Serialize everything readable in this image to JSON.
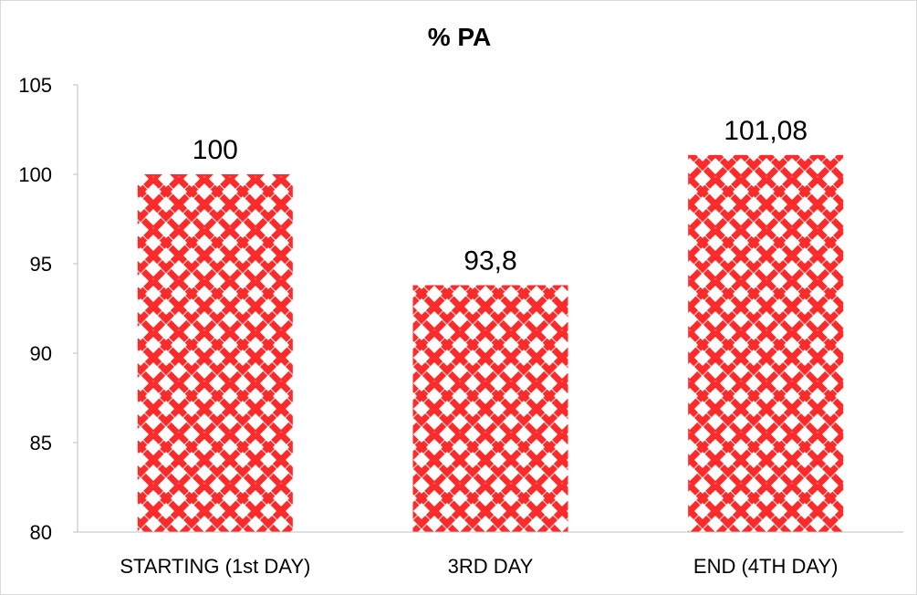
{
  "chart_data": {
    "type": "bar",
    "title": "% PA",
    "categories": [
      "STARTING (1st DAY)",
      "3RD DAY",
      "END (4TH DAY)"
    ],
    "values": [
      100,
      93.8,
      101.08
    ],
    "data_labels": [
      "100",
      "93,8",
      "101,08"
    ],
    "ylim": [
      80,
      105
    ],
    "yticks": [
      80,
      85,
      90,
      95,
      100,
      105
    ],
    "ytick_labels": [
      "80",
      "85",
      "90",
      "95",
      "100",
      "105"
    ],
    "xlabel": "",
    "ylabel": "",
    "grid": false,
    "legend": "none",
    "colors": {
      "pattern": "#ff2a2a",
      "background": "#ffffff",
      "axis": "#bfbfbf"
    }
  }
}
